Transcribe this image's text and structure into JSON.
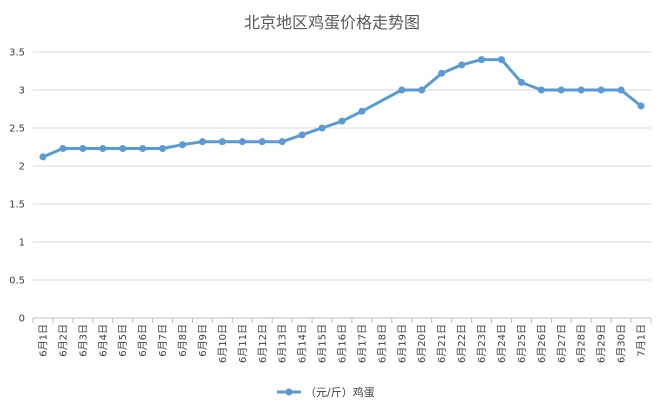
{
  "chart_data": {
    "type": "line",
    "title": "北京地区鸡蛋价格走势图",
    "xlabel": "",
    "ylabel": "",
    "categories": [
      "6月1日",
      "6月2日",
      "6月3日",
      "6月4日",
      "6月5日",
      "6月6日",
      "6月7日",
      "6月8日",
      "6月9日",
      "6月10日",
      "6月11日",
      "6月12日",
      "6月13日",
      "6月14日",
      "6月15日",
      "6月16日",
      "6月17日",
      "6月18日",
      "6月19日",
      "6月20日",
      "6月21日",
      "6月22日",
      "6月23日",
      "6月24日",
      "6月25日",
      "6月26日",
      "6月27日",
      "6月28日",
      "6月29日",
      "6月30日",
      "7月1日"
    ],
    "series": [
      {
        "name": "（元/斤）鸡蛋",
        "color": "#5B9BD5",
        "values": [
          2.12,
          2.23,
          2.23,
          2.23,
          2.23,
          2.23,
          2.23,
          2.28,
          2.32,
          2.32,
          2.32,
          2.32,
          2.32,
          2.41,
          2.5,
          2.59,
          2.72,
          null,
          3.0,
          3.0,
          3.22,
          3.33,
          3.4,
          3.4,
          3.1,
          3.0,
          3.0,
          3.0,
          3.0,
          3.0,
          2.79
        ]
      }
    ],
    "ylim": [
      0,
      3.5
    ],
    "yticks": [
      "0",
      "0.5",
      "1",
      "1.5",
      "2",
      "2.5",
      "3",
      "3.5"
    ],
    "grid": true,
    "legend": "bottom"
  }
}
